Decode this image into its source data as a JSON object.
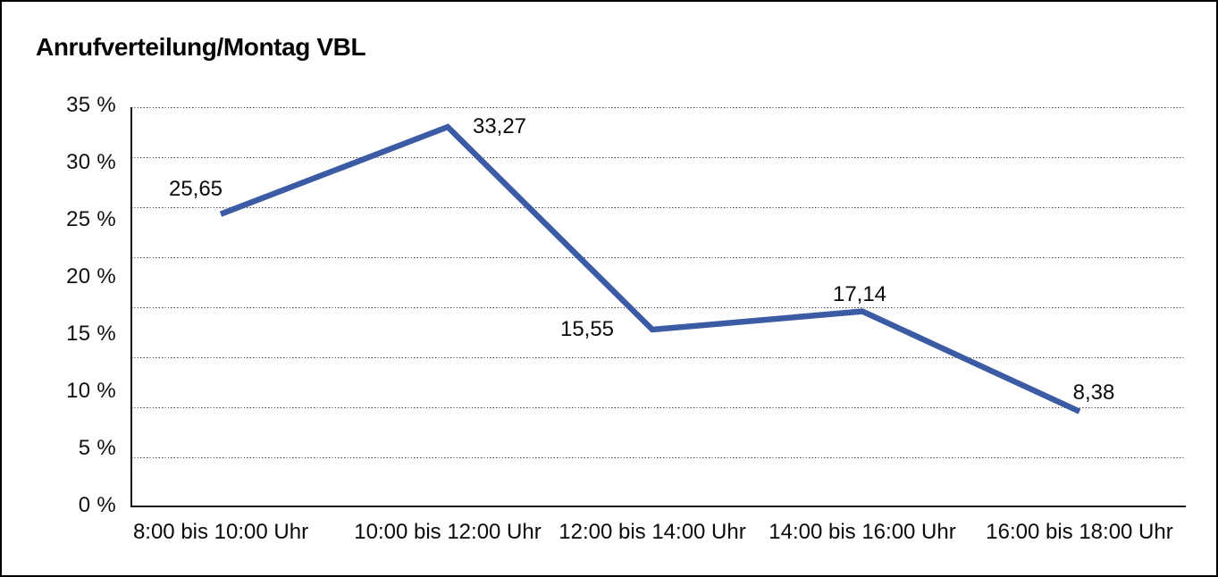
{
  "chart_data": {
    "type": "line",
    "title": "Anrufverteilung/Montag VBL",
    "categories": [
      "8:00 bis 10:00 Uhr",
      "10:00 bis 12:00 Uhr",
      "12:00 bis 14:00 Uhr",
      "14:00 bis 16:00 Uhr",
      "16:00 bis 18:00 Uhr"
    ],
    "values": [
      25.65,
      33.27,
      15.55,
      17.14,
      8.38
    ],
    "value_labels": [
      "25,65",
      "33,27",
      "15,55",
      "17,14",
      "8,38"
    ],
    "y_tick_labels": [
      "35 %",
      "30 %",
      "25 %",
      "20 %",
      "15 %",
      "10 %",
      "5 %",
      "0 %"
    ],
    "ylim": [
      0,
      35
    ],
    "xlabel": "",
    "ylabel": "",
    "grid": "horizontal-dotted",
    "horizontal_gridline_count": 8,
    "legend": "none",
    "markers": "none",
    "colors": {
      "line": "#3B5BA5",
      "text": "#111111",
      "grid": "#3f3f3f",
      "axis": "#141414",
      "frame_border": "#000000",
      "background": "#ffffff"
    }
  }
}
